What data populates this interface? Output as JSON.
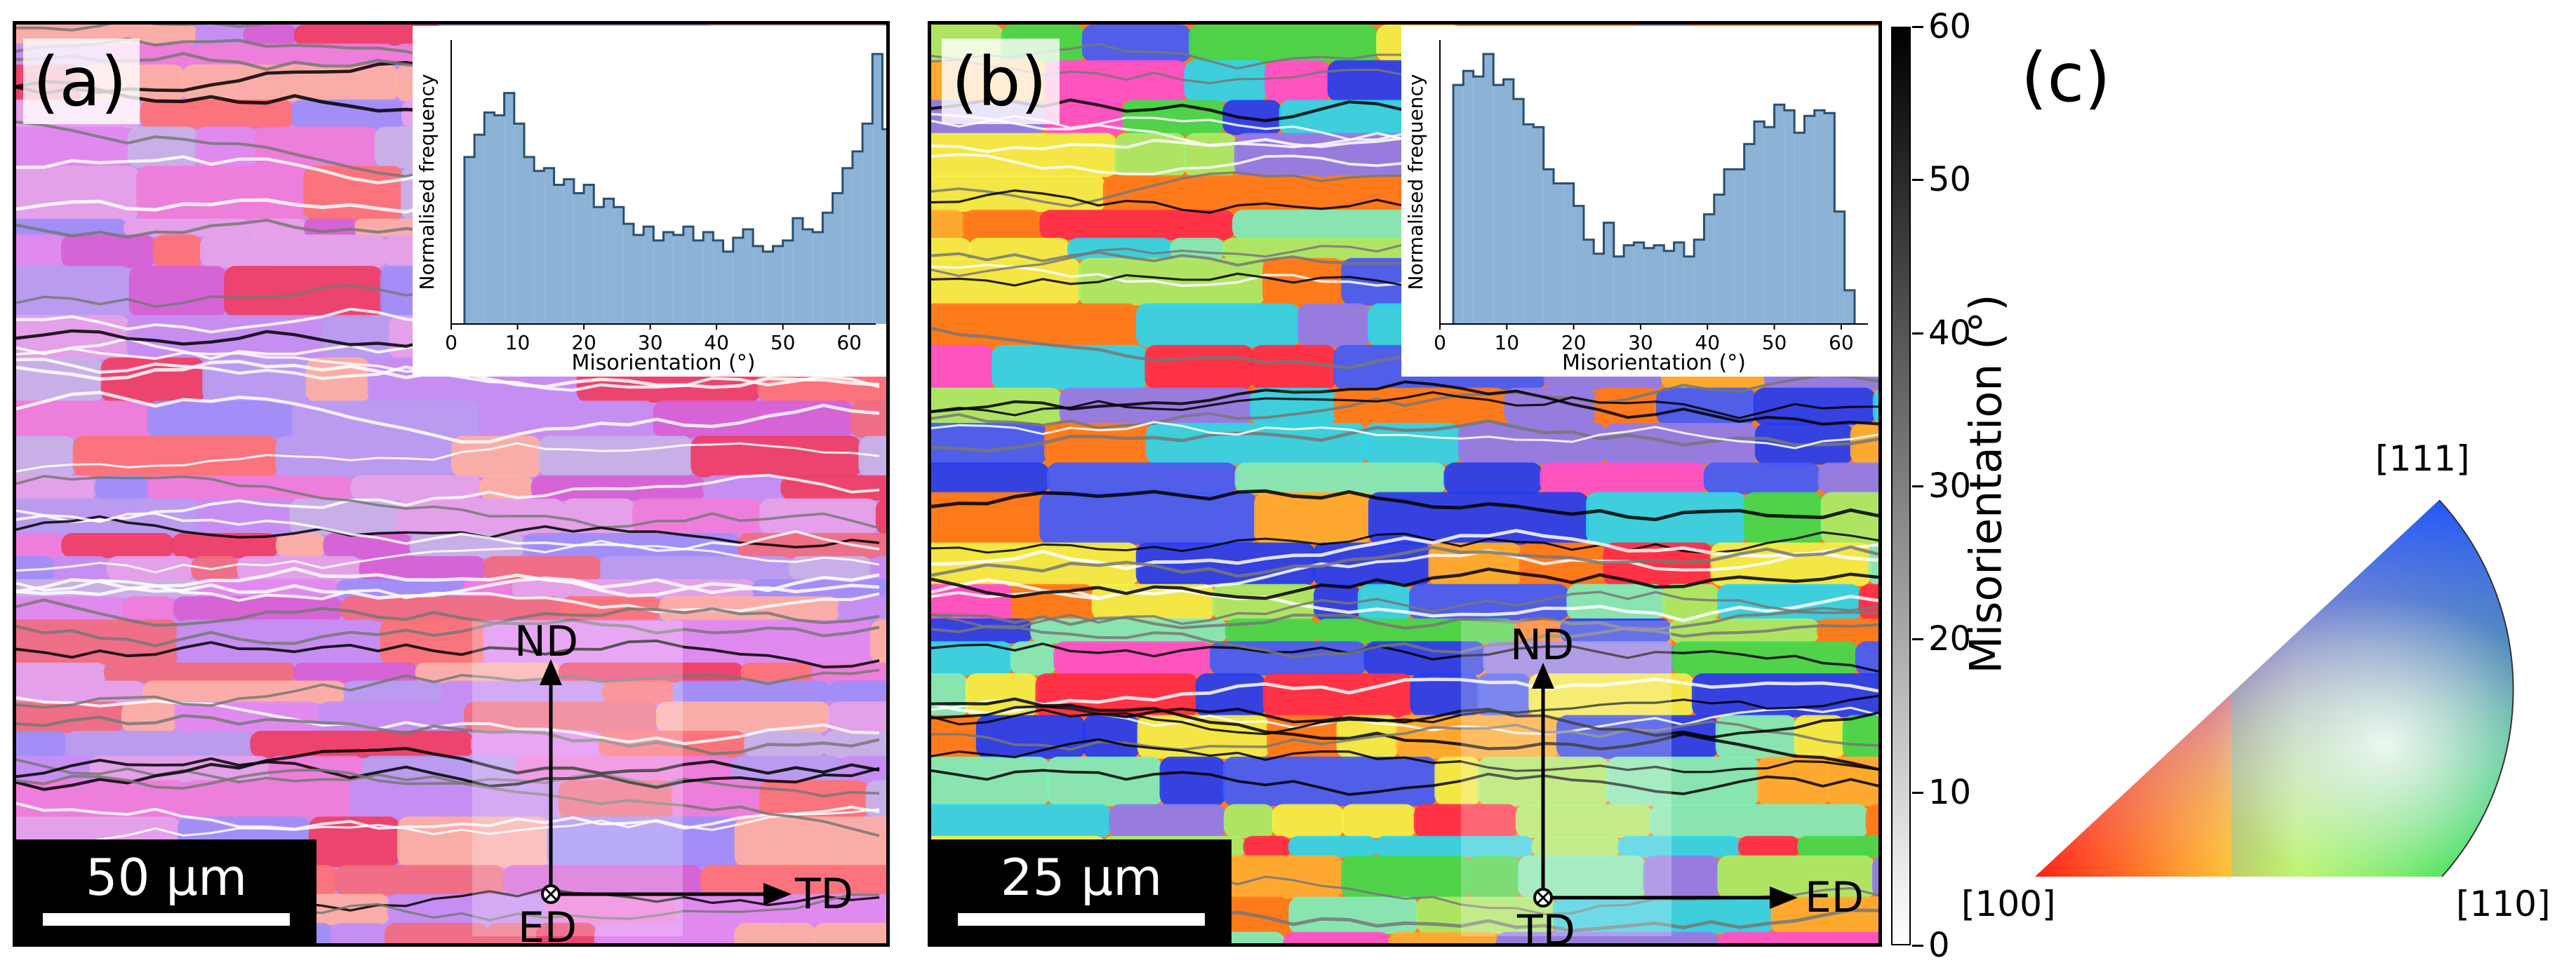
{
  "panels": {
    "a": {
      "label": "(a)",
      "scale_bar": "50 μm",
      "axes": {
        "up": "ND",
        "right": "TD",
        "origin": "ED"
      },
      "grain_colors": [
        "#c58ef2",
        "#e28af0",
        "#f17cd8",
        "#b89cf0",
        "#f26b7b",
        "#ff7070",
        "#c9b2e6",
        "#9f8ef8",
        "#e7a2e8",
        "#d75fd4",
        "#ef3c61",
        "#ffb0a0"
      ],
      "boundary_colors": [
        "#000000",
        "#ffffff",
        "#777777"
      ]
    },
    "b": {
      "label": "(b)",
      "scale_bar": "25 μm",
      "axes": {
        "up": "ND",
        "right": "ED",
        "origin": "TD"
      },
      "grain_colors": [
        "#ff7a1c",
        "#3ddc4f",
        "#1f3cf5",
        "#29d7f2",
        "#f3f24a",
        "#ff2b4a",
        "#8c7cf3",
        "#7df0c0",
        "#ff4fd0",
        "#a6f06b",
        "#3e5bff",
        "#ffad32"
      ],
      "boundary_colors": [
        "#000000",
        "#ffffff",
        "#777777"
      ]
    }
  },
  "insets": [
    {
      "chart_data": {
        "type": "bar",
        "xlabel": "Misorientation (°)",
        "ylabel": "Normalised frequency",
        "xlim": [
          0,
          64
        ],
        "xticks": [
          "0",
          "10",
          "20",
          "30",
          "40",
          "50",
          "60"
        ],
        "bin_width": 1.5,
        "x_start": 2,
        "values": [
          0.6,
          0.68,
          0.76,
          0.75,
          0.83,
          0.72,
          0.6,
          0.55,
          0.56,
          0.5,
          0.52,
          0.47,
          0.5,
          0.42,
          0.45,
          0.42,
          0.36,
          0.32,
          0.35,
          0.3,
          0.33,
          0.32,
          0.35,
          0.3,
          0.33,
          0.3,
          0.26,
          0.31,
          0.34,
          0.28,
          0.26,
          0.28,
          0.3,
          0.38,
          0.34,
          0.33,
          0.4,
          0.47,
          0.56,
          0.62,
          0.72,
          0.97,
          0.7,
          0.12
        ],
        "bar_color": "#8cb3d6",
        "edge_color": "#2d4f6e"
      }
    },
    {
      "chart_data": {
        "type": "bar",
        "xlabel": "Misorientation (°)",
        "ylabel": "Normalised frequency",
        "xlim": [
          0,
          64
        ],
        "xticks": [
          "0",
          "10",
          "20",
          "30",
          "40",
          "50",
          "60"
        ],
        "bin_width": 1.5,
        "x_start": 2,
        "values": [
          0.85,
          0.9,
          0.88,
          0.96,
          0.85,
          0.87,
          0.8,
          0.71,
          0.7,
          0.55,
          0.5,
          0.5,
          0.42,
          0.3,
          0.25,
          0.36,
          0.24,
          0.28,
          0.29,
          0.27,
          0.28,
          0.26,
          0.29,
          0.24,
          0.3,
          0.39,
          0.46,
          0.55,
          0.55,
          0.64,
          0.72,
          0.7,
          0.78,
          0.76,
          0.68,
          0.74,
          0.76,
          0.75,
          0.4,
          0.12
        ],
        "bar_color": "#8cb3d6",
        "edge_color": "#2d4f6e"
      }
    }
  ],
  "colorbar": {
    "title": "Misorientation (°)",
    "ticks": [
      "0",
      "10",
      "20",
      "30",
      "40",
      "50",
      "60"
    ],
    "range": [
      0,
      60
    ]
  },
  "panel_c": {
    "label": "(c)",
    "corners": [
      "[100]",
      "[110]",
      "[111]"
    ]
  }
}
